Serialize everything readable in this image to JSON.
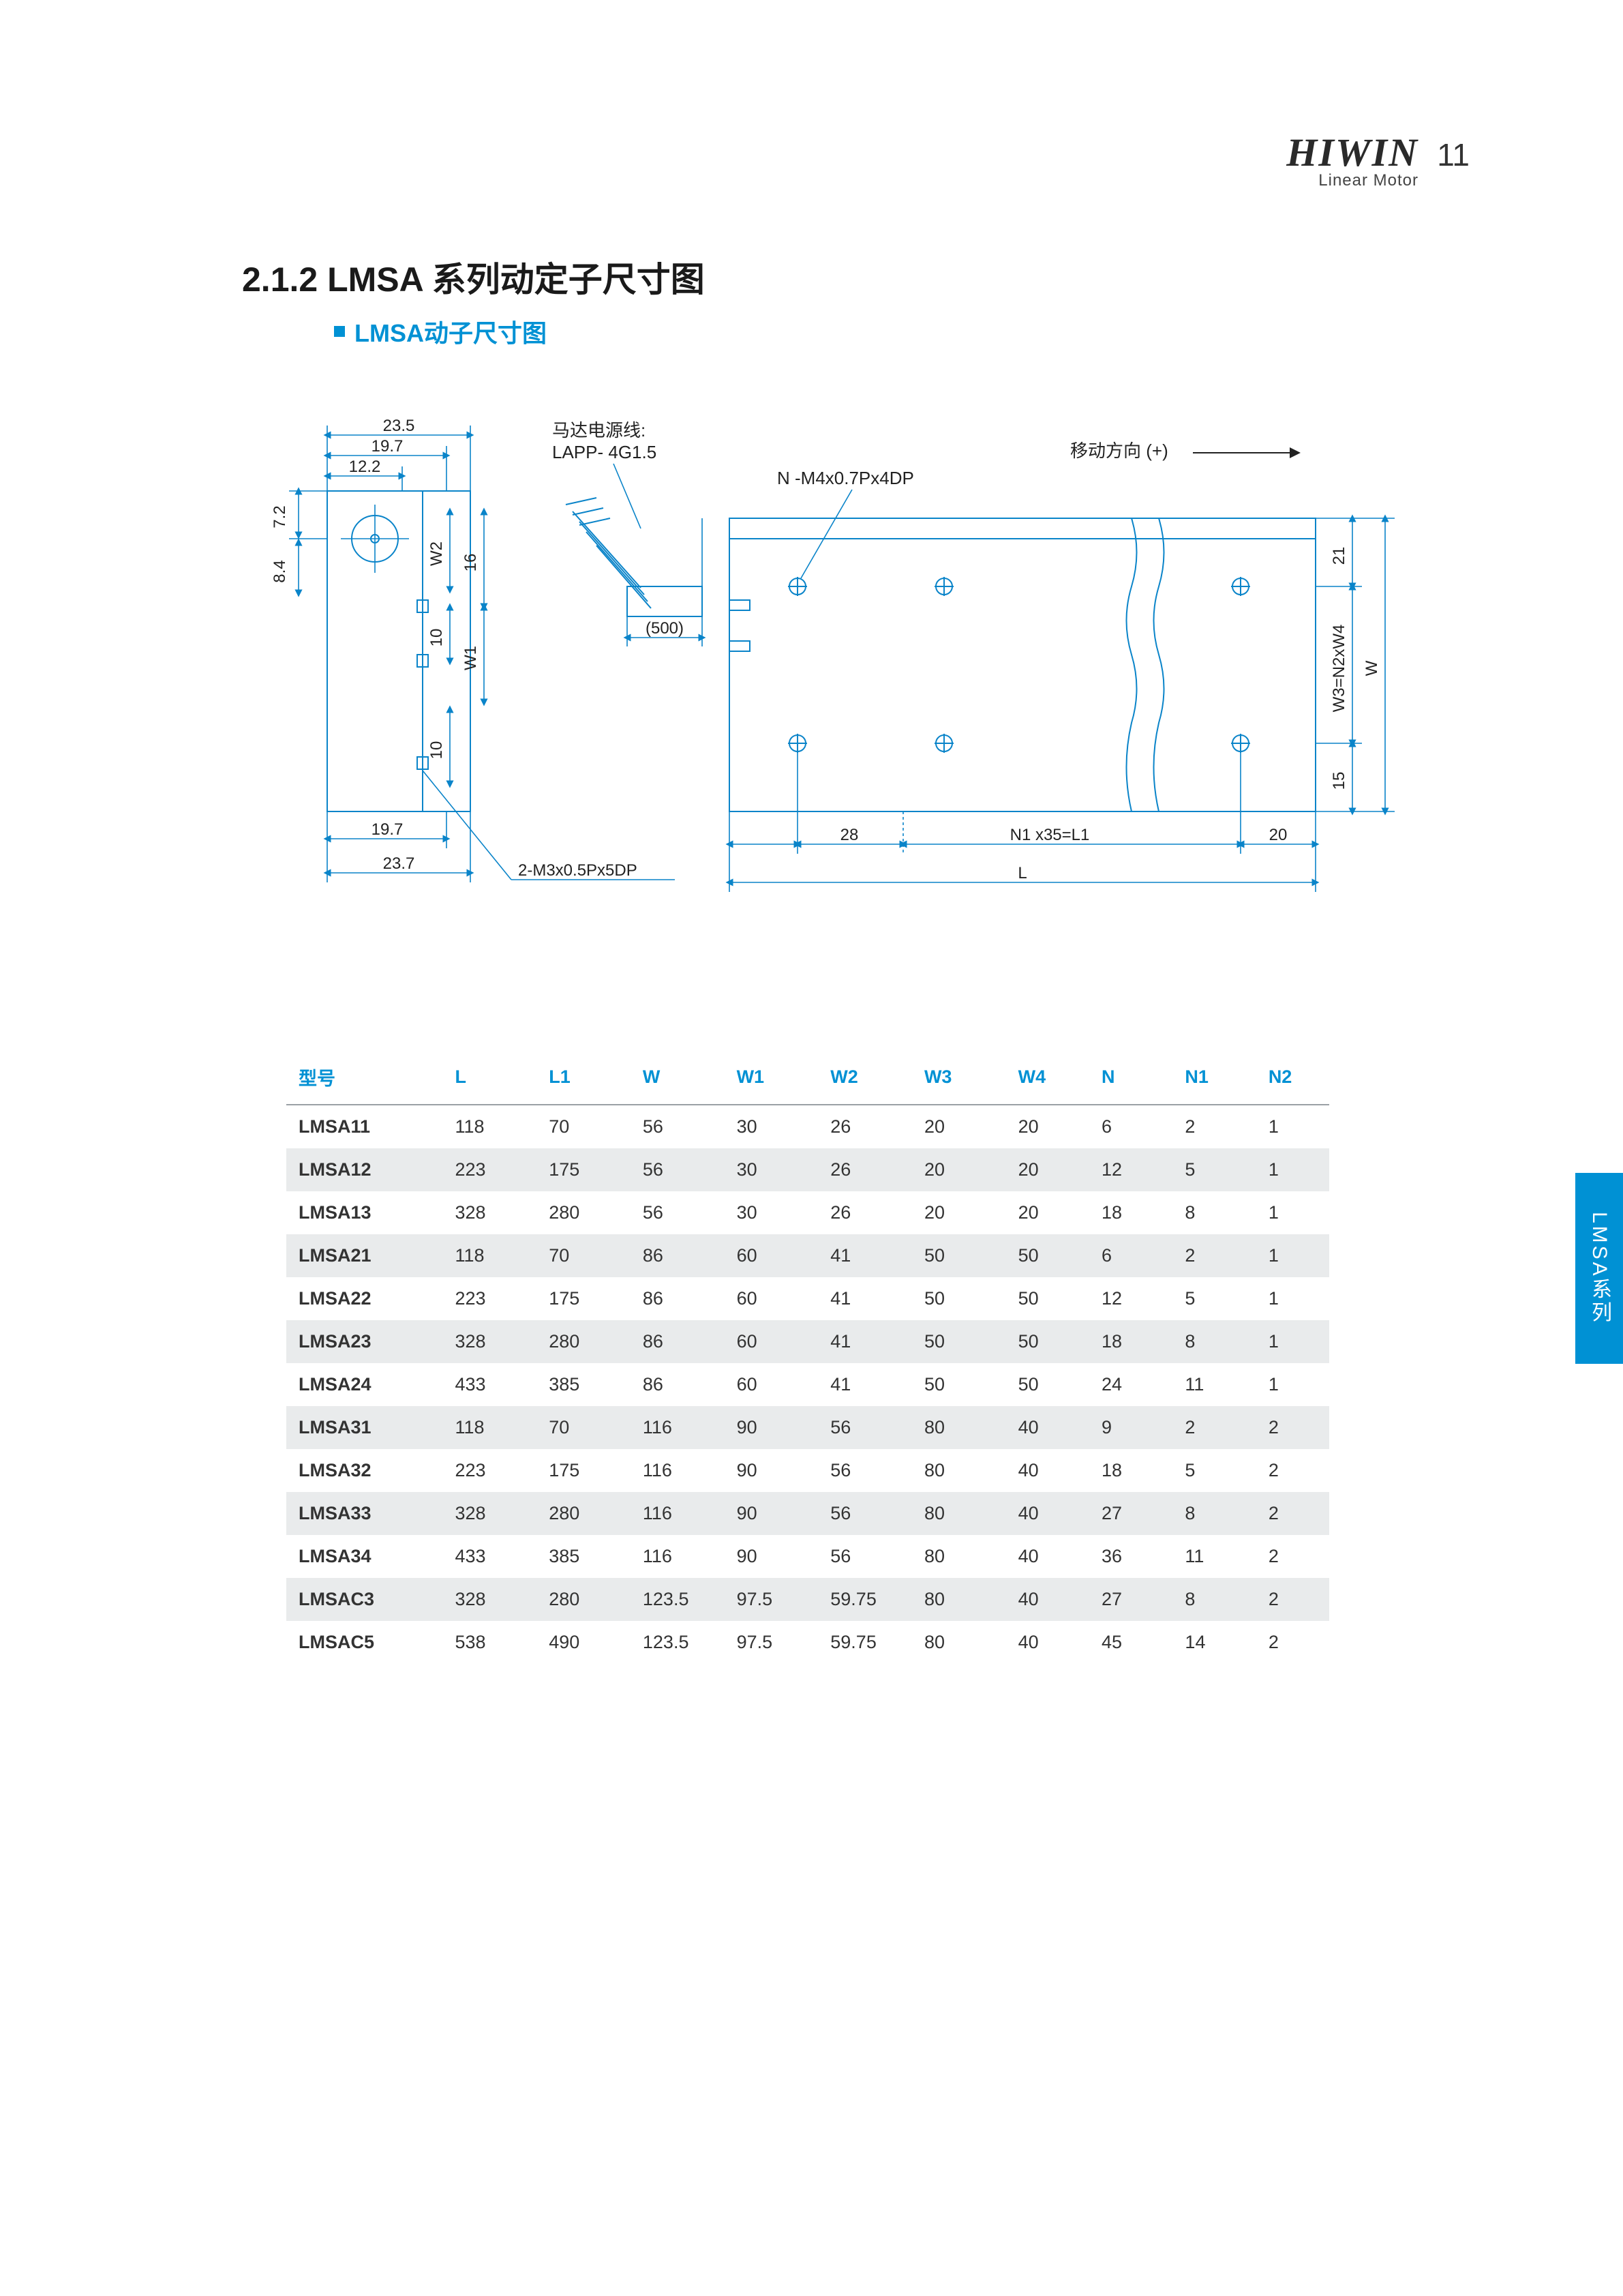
{
  "header": {
    "brand": "HIWIN",
    "brand_sub": "Linear Motor",
    "page_number": "11"
  },
  "titles": {
    "section": "2.1.2  LMSA 系列动定子尺寸图",
    "subtitle": "LMSA动子尺寸图"
  },
  "side_tab": "LMSA系列",
  "diagram": {
    "colors": {
      "stroke": "#0a84c9",
      "text": "#222222",
      "bg": "#ffffff"
    },
    "left_block": {
      "dims_top": {
        "d1": "23.5",
        "d2": "19.7",
        "d3": "12.2"
      },
      "dims_left": {
        "v1": "7.2",
        "v2": "8.4"
      },
      "dims_inner": {
        "w2": "W2",
        "w1": "W1",
        "s16": "16",
        "s10a": "10",
        "s10b": "10"
      },
      "dims_bottom": {
        "d1": "19.7",
        "d2": "23.7"
      },
      "callout": "2-M3x0.5Px5DP"
    },
    "cable": {
      "label1": "马达电源线:",
      "label2": "LAPP- 4G1.5",
      "len": "(500)"
    },
    "right_block": {
      "thread": "N -M4x0.7Px4DP",
      "move_dir": "移动方向 (+)",
      "dims_right": {
        "r21": "21",
        "w3eq": "W3=N2xW4",
        "w": "W",
        "r15": "15"
      },
      "dims_bottom": {
        "d28": "28",
        "n1eq": "N1 x35=L1",
        "d20": "20",
        "L": "L"
      }
    }
  },
  "table": {
    "columns": [
      "型号",
      "L",
      "L1",
      "W",
      "W1",
      "W2",
      "W3",
      "W4",
      "N",
      "N1",
      "N2"
    ],
    "col_widths_pct": [
      15,
      9,
      9,
      9,
      9,
      9,
      9,
      8,
      8,
      8,
      7
    ],
    "rows": [
      [
        "LMSA11",
        "118",
        "70",
        "56",
        "30",
        "26",
        "20",
        "20",
        "6",
        "2",
        "1"
      ],
      [
        "LMSA12",
        "223",
        "175",
        "56",
        "30",
        "26",
        "20",
        "20",
        "12",
        "5",
        "1"
      ],
      [
        "LMSA13",
        "328",
        "280",
        "56",
        "30",
        "26",
        "20",
        "20",
        "18",
        "8",
        "1"
      ],
      [
        "LMSA21",
        "118",
        "70",
        "86",
        "60",
        "41",
        "50",
        "50",
        "6",
        "2",
        "1"
      ],
      [
        "LMSA22",
        "223",
        "175",
        "86",
        "60",
        "41",
        "50",
        "50",
        "12",
        "5",
        "1"
      ],
      [
        "LMSA23",
        "328",
        "280",
        "86",
        "60",
        "41",
        "50",
        "50",
        "18",
        "8",
        "1"
      ],
      [
        "LMSA24",
        "433",
        "385",
        "86",
        "60",
        "41",
        "50",
        "50",
        "24",
        "11",
        "1"
      ],
      [
        "LMSA31",
        "118",
        "70",
        "116",
        "90",
        "56",
        "80",
        "40",
        "9",
        "2",
        "2"
      ],
      [
        "LMSA32",
        "223",
        "175",
        "116",
        "90",
        "56",
        "80",
        "40",
        "18",
        "5",
        "2"
      ],
      [
        "LMSA33",
        "328",
        "280",
        "116",
        "90",
        "56",
        "80",
        "40",
        "27",
        "8",
        "2"
      ],
      [
        "LMSA34",
        "433",
        "385",
        "116",
        "90",
        "56",
        "80",
        "40",
        "36",
        "11",
        "2"
      ],
      [
        "LMSAC3",
        "328",
        "280",
        "123.5",
        "97.5",
        "59.75",
        "80",
        "40",
        "27",
        "8",
        "2"
      ],
      [
        "LMSAC5",
        "538",
        "490",
        "123.5",
        "97.5",
        "59.75",
        "80",
        "40",
        "45",
        "14",
        "2"
      ]
    ],
    "header_color": "#0091d4",
    "alt_row_bg": "#e9ebec",
    "font_size_pt": 11
  }
}
